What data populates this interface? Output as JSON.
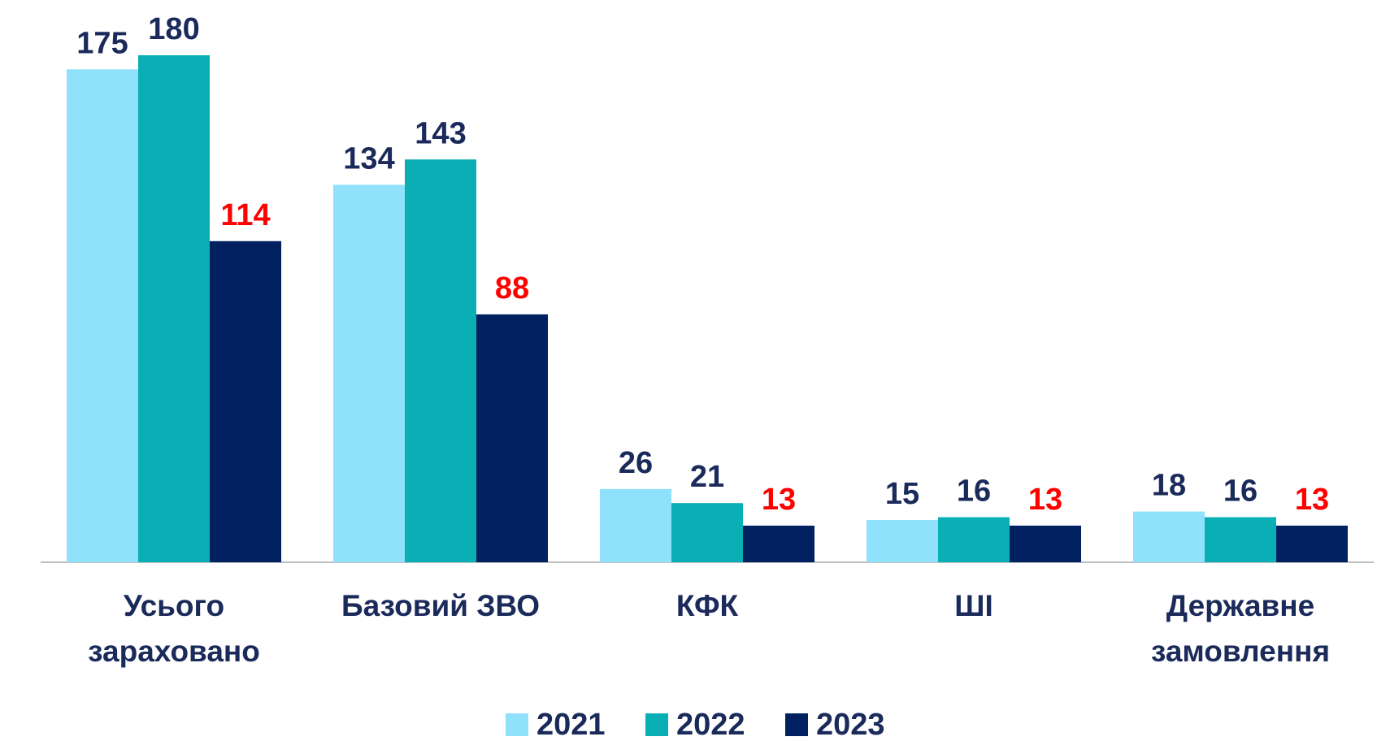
{
  "chart_data": {
    "type": "bar",
    "categories": [
      "Усього зараховано",
      "Базовий ЗВО",
      "КФК",
      "ШІ",
      "Державне замовлення"
    ],
    "series": [
      {
        "name": "2021",
        "color": "#8fe1fc",
        "label_color": "#1a2a5a",
        "values": [
          175,
          134,
          26,
          15,
          18
        ]
      },
      {
        "name": "2022",
        "color": "#0aafb5",
        "label_color": "#1a2a5a",
        "values": [
          180,
          143,
          21,
          16,
          16
        ]
      },
      {
        "name": "2023",
        "color": "#002060",
        "label_color": "#ff0000",
        "values": [
          114,
          88,
          13,
          13,
          13
        ]
      }
    ],
    "legend": "bottom"
  }
}
